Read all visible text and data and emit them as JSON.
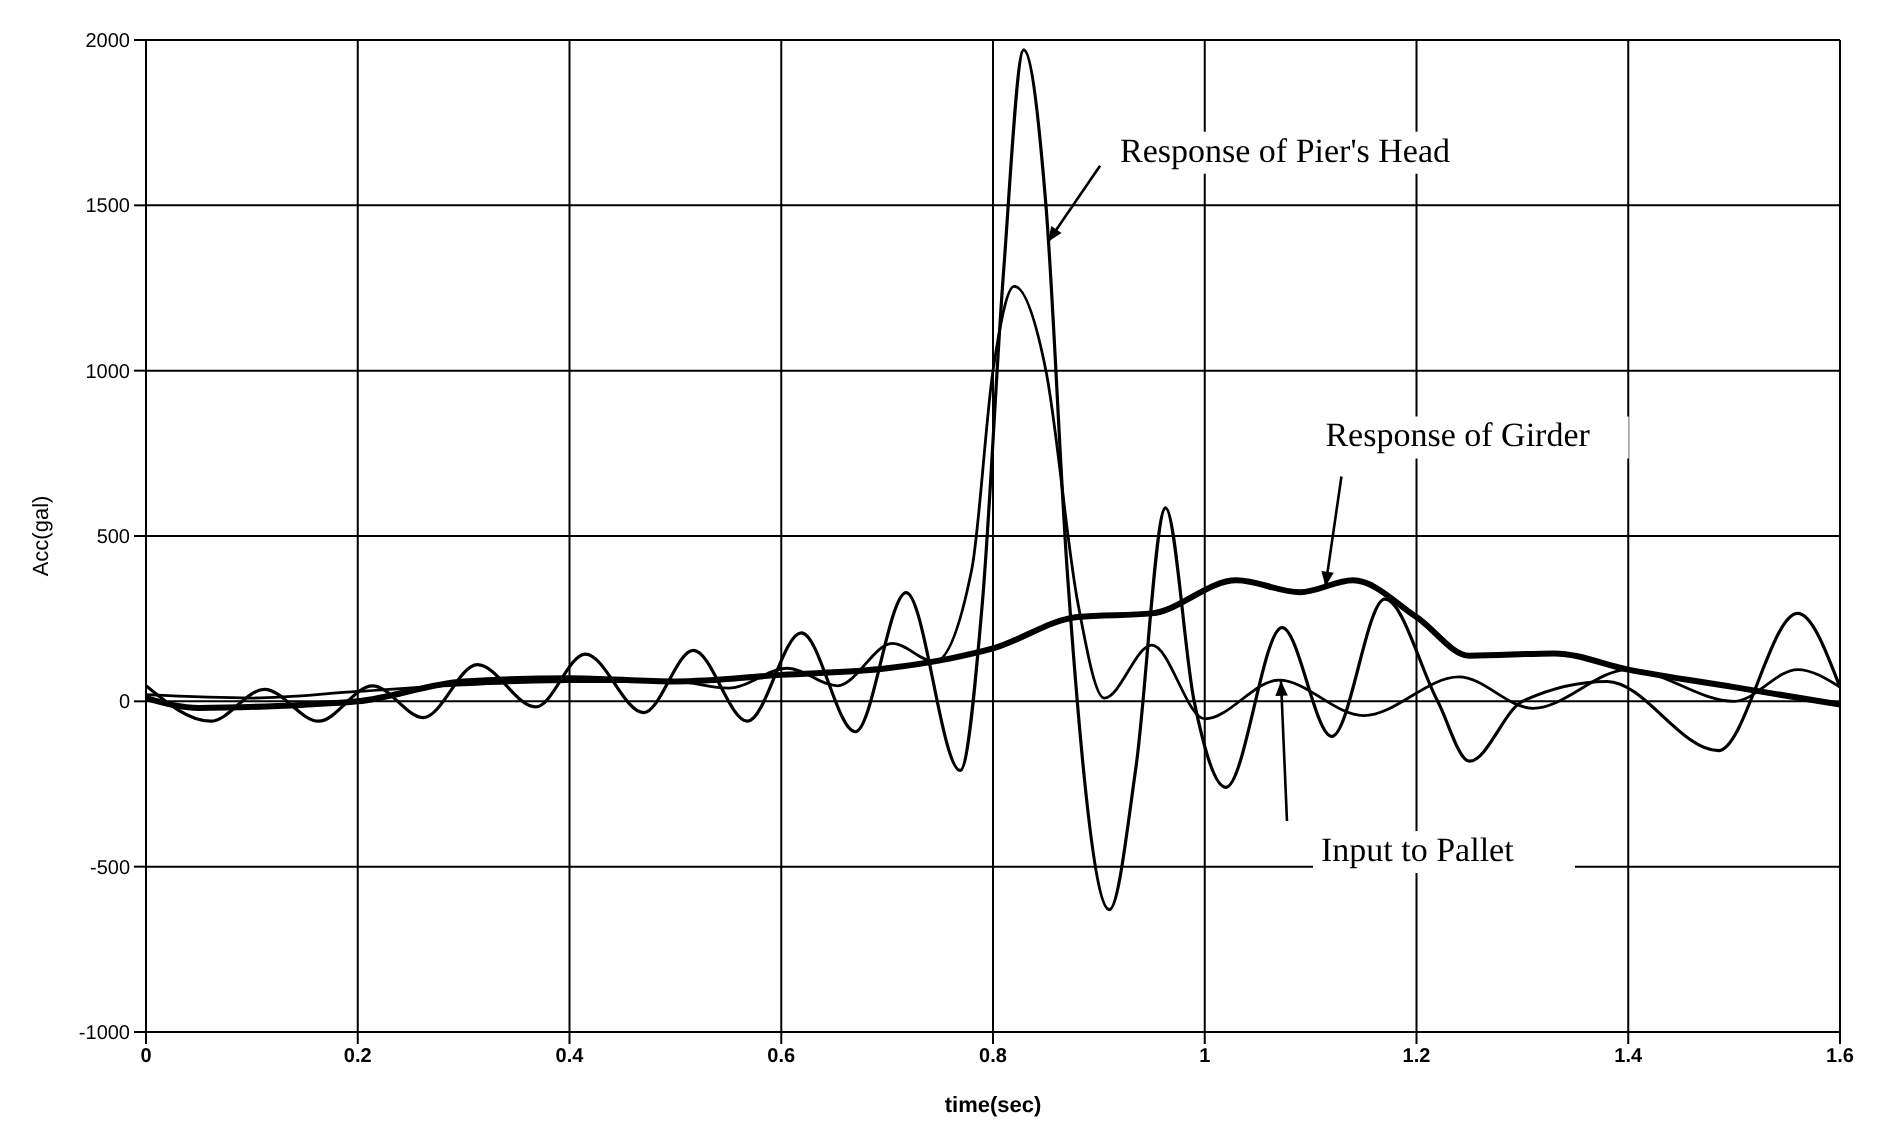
{
  "chart_data": {
    "type": "line",
    "xlabel": "time(sec)",
    "ylabel": "Acc(gal)",
    "xlim": [
      0,
      1.6
    ],
    "xticks": [
      0,
      0.2,
      0.4,
      0.6,
      0.8,
      1,
      1.2,
      1.4,
      1.6
    ],
    "ylim": [
      -1000,
      2000
    ],
    "yticks": [
      -1000,
      -500,
      0,
      500,
      1000,
      1500,
      2000
    ],
    "grid": true,
    "legend": false,
    "marker": "none",
    "line_style": "solid",
    "series": [
      {
        "name": "Response of Pier's Head",
        "color": "#000000",
        "x": [
          0,
          0.061,
          0.112,
          0.163,
          0.214,
          0.262,
          0.313,
          0.368,
          0.415,
          0.47,
          0.517,
          0.568,
          0.619,
          0.67,
          0.718,
          0.769,
          0.79,
          0.81,
          0.829,
          0.85,
          0.87,
          0.91,
          0.935,
          0.963,
          0.99,
          1.02,
          1.073,
          1.12,
          1.17,
          1.22,
          1.25,
          1.3,
          1.38,
          1.485,
          1.56,
          1.6
        ],
        "values": [
          47,
          -60,
          36,
          -60,
          47,
          -49,
          111,
          -17,
          143,
          -34,
          154,
          -60,
          207,
          -92,
          329,
          -209,
          300,
          1300,
          1970,
          1500,
          400,
          -630,
          -200,
          585,
          0,
          -260,
          223,
          -106,
          309,
          0,
          -181,
          0,
          60,
          -149,
          266,
          43
        ]
      },
      {
        "name": "Input to Pallet",
        "color": "#000000",
        "x": [
          0,
          0.1,
          0.2,
          0.3,
          0.4,
          0.5,
          0.55,
          0.606,
          0.653,
          0.705,
          0.745,
          0.78,
          0.8,
          0.82,
          0.85,
          0.88,
          0.905,
          0.95,
          1.0,
          1.07,
          1.15,
          1.24,
          1.31,
          1.4,
          1.5,
          1.56,
          1.6
        ],
        "values": [
          20,
          10,
          30,
          50,
          60,
          60,
          40,
          100,
          47,
          175,
          120,
          400,
          1000,
          1255,
          1000,
          300,
          10,
          170,
          -53,
          64,
          -43,
          74,
          -21,
          96,
          0,
          96,
          43
        ]
      },
      {
        "name": "Response of Girder",
        "color": "#000000",
        "x": [
          0,
          0.05,
          0.15,
          0.2,
          0.3,
          0.4,
          0.5,
          0.6,
          0.7,
          0.76,
          0.8,
          0.88,
          0.95,
          1.03,
          1.09,
          1.14,
          1.2,
          1.25,
          1.33,
          1.4,
          1.5,
          1.6
        ],
        "values": [
          10,
          -20,
          -10,
          0,
          60,
          70,
          60,
          80,
          100,
          130,
          160,
          255,
          266,
          366,
          330,
          366,
          255,
          138,
          145,
          96,
          43,
          -10
        ]
      }
    ]
  }
}
